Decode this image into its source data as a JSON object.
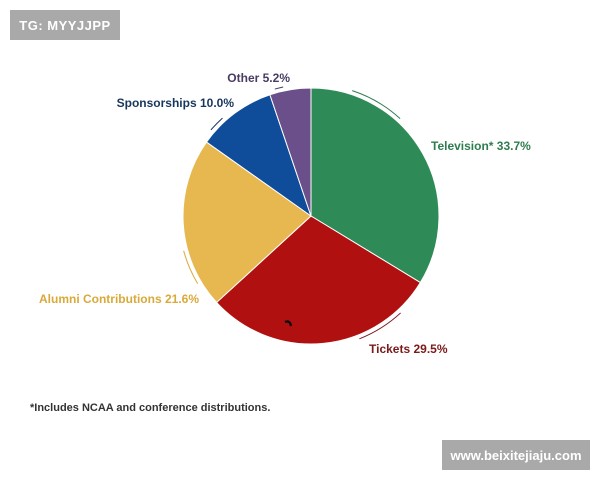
{
  "watermark_top": "TG: MYYJJPP",
  "watermark_bottom": "www.beixitejiaju.com",
  "footnote": "*Includes NCAA and conference distributions.",
  "chart_data": {
    "type": "pie",
    "slices": [
      {
        "label": "Television* 33.7%",
        "name": "Television*",
        "value": 33.7,
        "color": "#2e8b57",
        "label_color": "#2e7d4f"
      },
      {
        "label": "Tickets 29.5%",
        "name": "Tickets",
        "value": 29.5,
        "color": "#b01010",
        "label_color": "#7a1a1a"
      },
      {
        "label": "Alumni Contributions 21.6%",
        "name": "Alumni Contributions",
        "value": 21.6,
        "color": "#e6b84f",
        "label_color": "#d9a93a"
      },
      {
        "label": "Sponsorships 10.0%",
        "name": "Sponsorships",
        "value": 10.0,
        "color": "#0f4c9a",
        "label_color": "#17365d"
      },
      {
        "label": "Other 5.2%",
        "name": "Other",
        "value": 5.2,
        "color": "#6b4f8a",
        "label_color": "#4a3b63"
      }
    ]
  }
}
